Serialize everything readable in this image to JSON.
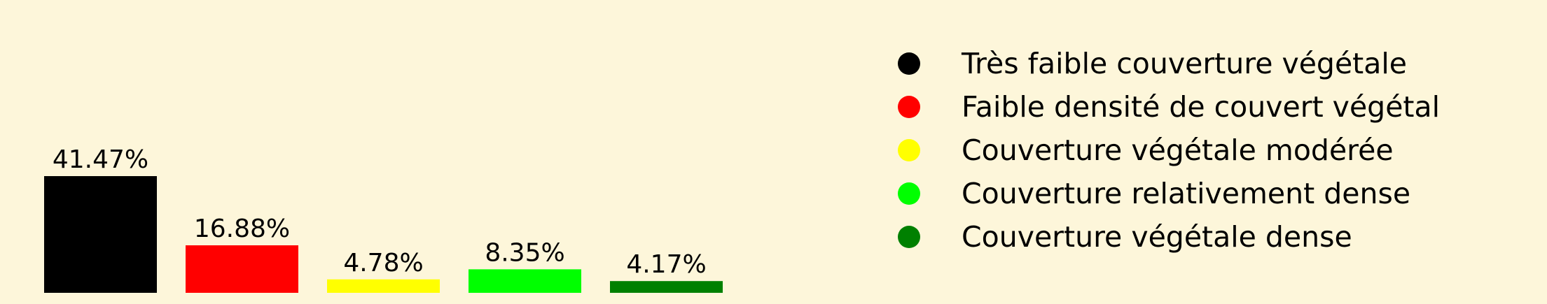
{
  "chart_data": {
    "type": "bar",
    "categories": [
      "Très faible couverture végétale",
      "Faible densité de couvert végétal",
      "Couverture végétale modérée",
      "Couverture relativement dense",
      "Couverture végétale dense"
    ],
    "values": [
      41.47,
      16.88,
      4.78,
      8.35,
      4.17
    ],
    "value_labels": [
      "41.47%",
      "16.88%",
      "4.78%",
      "8.35%",
      "4.17%"
    ],
    "colors": [
      "#000000",
      "#ff0000",
      "#ffff00",
      "#00ff00",
      "#008000"
    ],
    "legend_marker_colors": [
      "#000000",
      "#ff0000",
      "#ffff00",
      "#00ff00",
      "#008000"
    ],
    "legend_placement": "right",
    "background": "#fdf6da",
    "ylim": [
      0,
      41.47
    ],
    "grid": false,
    "axes_visible": false
  }
}
